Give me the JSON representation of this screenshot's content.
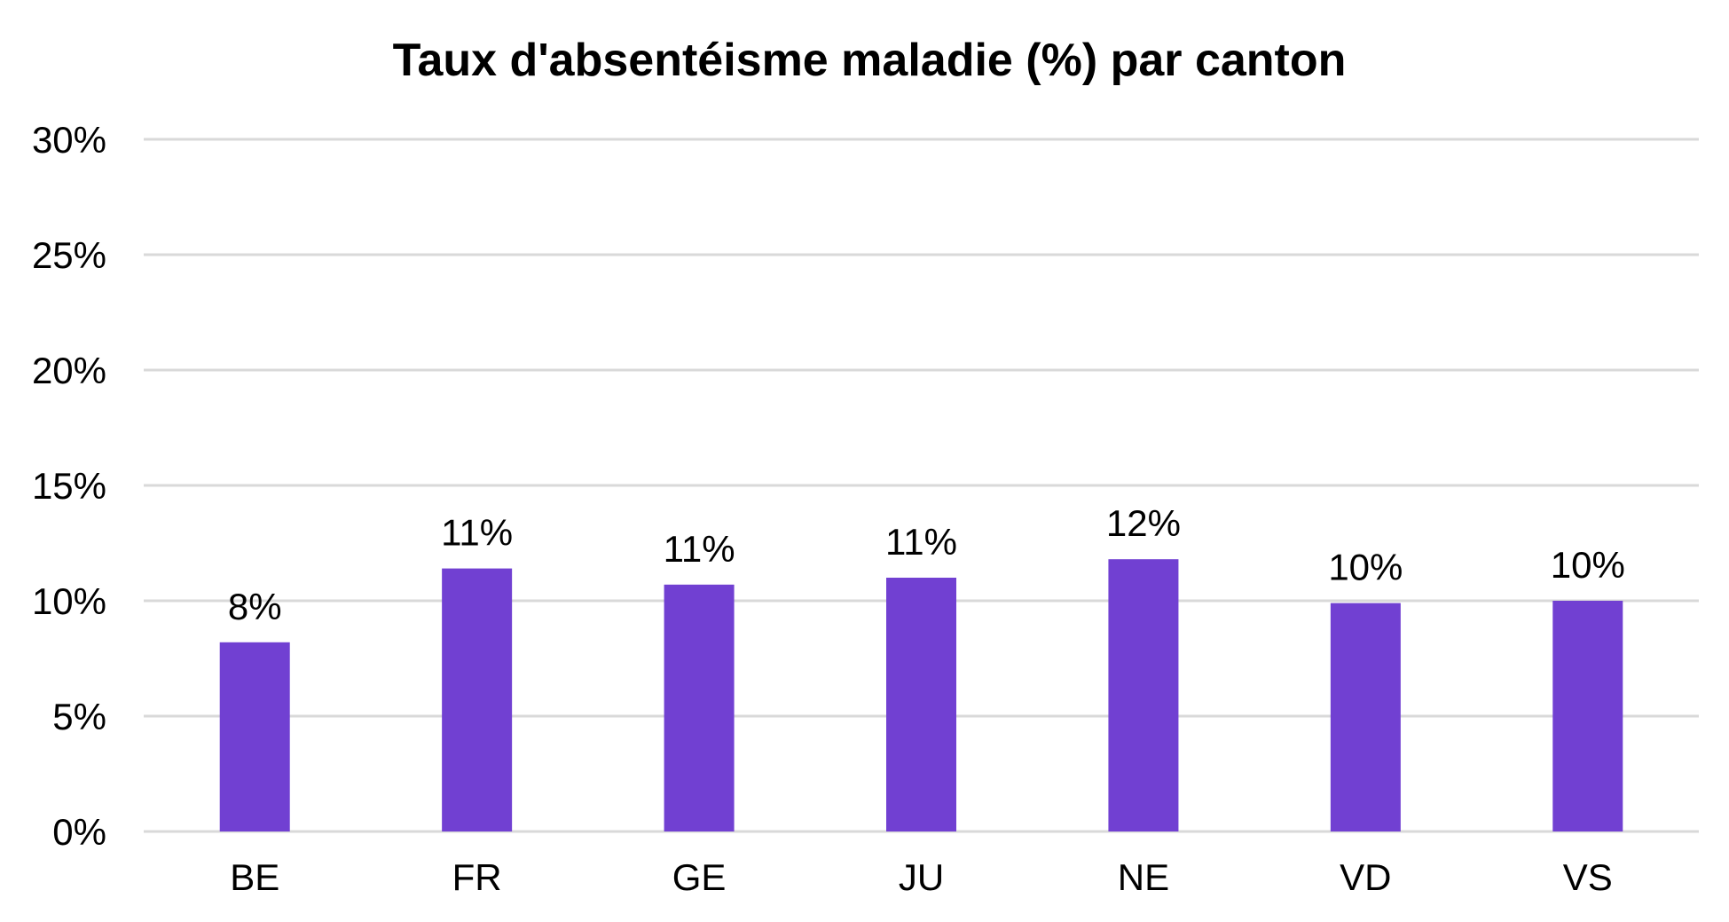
{
  "chart_data": {
    "type": "bar",
    "title": "Taux d'absentéisme maladie (%) par canton",
    "categories": [
      "BE",
      "FR",
      "GE",
      "JU",
      "NE",
      "VD",
      "VS"
    ],
    "values": [
      8.2,
      11.4,
      10.7,
      11.0,
      11.8,
      9.9,
      10.0
    ],
    "data_labels": [
      "8%",
      "11%",
      "11%",
      "11%",
      "12%",
      "10%",
      "10%"
    ],
    "ylim": [
      0,
      30
    ],
    "y_ticks": [
      0,
      5,
      10,
      15,
      20,
      25,
      30
    ],
    "y_tick_labels": [
      "0%",
      "5%",
      "10%",
      "15%",
      "20%",
      "25%",
      "30%"
    ],
    "xlabel": "",
    "ylabel": "",
    "grid": true,
    "legend": "none",
    "bar_color": "#7140d2",
    "grid_color": "#d9d9d9"
  }
}
